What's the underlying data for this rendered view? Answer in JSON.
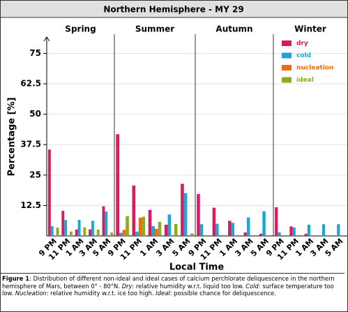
{
  "chart_data": {
    "type": "bar",
    "title": "Northern Hemisphere - MY 29",
    "xlabel": "Local Time",
    "ylabel": "Percentage [%]",
    "panels": [
      "Spring",
      "Summer",
      "Autumn",
      "Winter"
    ],
    "categories": [
      "9 PM",
      "11 PM",
      "1 AM",
      "3 AM",
      "5 AM"
    ],
    "ylim": [
      0,
      80
    ],
    "yticks": [
      12.5,
      25,
      37.5,
      50,
      62.5,
      75
    ],
    "grid": true,
    "series": [
      {
        "name": "dry",
        "color": "#d81b60",
        "values": [
          [
            35.5,
            10.3,
            2.6,
            2.7,
            12.2
          ],
          [
            41.8,
            20.7,
            10.7,
            4.6,
            21.4
          ],
          [
            17.2,
            11.6,
            6.2,
            1.4,
            0.9
          ],
          [
            11.8,
            3.9,
            0.9,
            0,
            0
          ]
        ]
      },
      {
        "name": "cold",
        "color": "#1ea5d6",
        "values": [
          [
            4,
            6.5,
            6.6,
            6.2,
            10
          ],
          [
            1.3,
            1.8,
            4,
            8.8,
            17.6
          ],
          [
            4.8,
            5,
            5.4,
            7.6,
            10.1
          ],
          [
            1.5,
            3.5,
            4.6,
            4.8,
            4.8
          ]
        ]
      },
      {
        "name": "nucleation",
        "color": "#f26b0f",
        "values": [
          [
            0,
            0,
            0,
            0,
            0
          ],
          [
            2.5,
            7.5,
            2.9,
            0,
            0
          ],
          [
            0,
            0,
            0,
            0,
            0
          ],
          [
            0,
            0,
            0,
            0,
            0
          ]
        ]
      },
      {
        "name": "ideal",
        "color": "#8faa1b",
        "values": [
          [
            3.4,
            1.8,
            3.5,
            2.6,
            1.4
          ],
          [
            8.1,
            7.9,
            5.8,
            4.9,
            1
          ],
          [
            0,
            0,
            0,
            0,
            0
          ],
          [
            0,
            0,
            0,
            0,
            0
          ]
        ]
      }
    ]
  },
  "caption": [
    "Figure 1",
    ": Distribution of different non-ideal and ideal cases of calcium perchlorate deliquescence in the northern hemisphere of Mars, between 0° - 80°N. ",
    "Dry",
    ": relative humidity w.r.t. liquid too low. ",
    "Cold",
    ": surface temperature too low. ",
    "Nucleation",
    ": relative humidity w.r.t. ice too high. ",
    "Ideal",
    ": possible chance for deliquescence."
  ]
}
